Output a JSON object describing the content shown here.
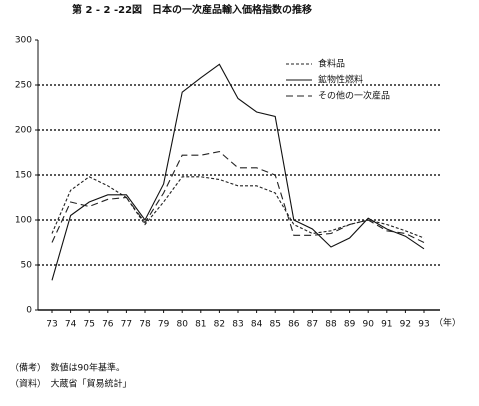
{
  "chart_data": {
    "type": "line",
    "title": "第 2 - 2 -22図　日本の一次産品輸入価格指数の推移",
    "x_unit": "（年）",
    "categories": [
      "73",
      "74",
      "75",
      "76",
      "77",
      "78",
      "79",
      "80",
      "81",
      "82",
      "83",
      "84",
      "85",
      "86",
      "87",
      "88",
      "89",
      "90",
      "91",
      "92",
      "93"
    ],
    "series": [
      {
        "name": "食料品",
        "color": "#222222",
        "dash": "3,2",
        "values": [
          85,
          133,
          148,
          138,
          125,
          95,
          120,
          148,
          148,
          145,
          138,
          138,
          130,
          95,
          85,
          88,
          95,
          100,
          95,
          88,
          80
        ]
      },
      {
        "name": "鉱物性燃料",
        "color": "#111111",
        "dash": "none",
        "values": [
          33,
          105,
          120,
          128,
          128,
          100,
          140,
          242,
          258,
          273,
          235,
          220,
          215,
          100,
          90,
          70,
          80,
          102,
          90,
          82,
          68
        ]
      },
      {
        "name": "その他の一次産品",
        "color": "#222222",
        "dash": "7,4",
        "values": [
          75,
          120,
          115,
          123,
          125,
          97,
          130,
          172,
          172,
          176,
          158,
          158,
          150,
          83,
          83,
          85,
          95,
          100,
          88,
          85,
          75
        ]
      }
    ],
    "ylim": [
      0,
      300
    ],
    "yticks": [
      0,
      50,
      100,
      150,
      200,
      250,
      300
    ],
    "grid": true,
    "legend": "upper-right",
    "notes": [
      "（備考）　数値は90年基準。",
      "（資料）　大蔵省「貿易統計」"
    ]
  }
}
